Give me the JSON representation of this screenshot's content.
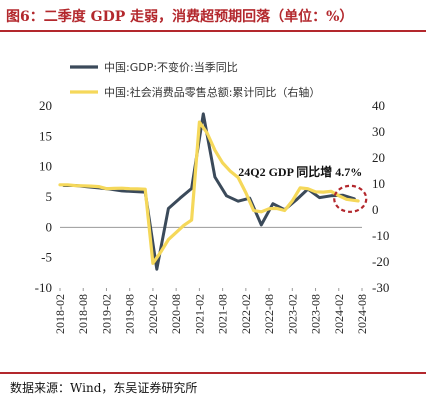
{
  "header": {
    "title": "图6：二季度 GDP 走弱，消费超预期回落（单位：%）"
  },
  "source": {
    "text": "数据来源：Wind，东吴证券研究所"
  },
  "chart_data": {
    "type": "line",
    "x": [
      "2018-02",
      "2018-05",
      "2018-08",
      "2018-11",
      "2019-02",
      "2019-05",
      "2019-08",
      "2019-11",
      "2020-02",
      "2020-05",
      "2020-08",
      "2020-11",
      "2021-02",
      "2021-05",
      "2021-08",
      "2021-11",
      "2022-02",
      "2022-05",
      "2022-08",
      "2022-11",
      "2023-02",
      "2023-05",
      "2023-08",
      "2023-11",
      "2024-02",
      "2024-05",
      "2024-08"
    ],
    "xticks": [
      "2018-02",
      "2018-08",
      "2019-02",
      "2019-08",
      "2020-02",
      "2020-08",
      "2021-02",
      "2021-08",
      "2022-02",
      "2022-08",
      "2023-02",
      "2023-08",
      "2024-02",
      "2024-08"
    ],
    "series": [
      {
        "name": "中国:GDP:不变价:当季同比",
        "axis": "left",
        "color": "#3b4a5a",
        "points": [
          [
            "2018-03",
            6.9
          ],
          [
            "2018-06",
            6.9
          ],
          [
            "2018-09",
            6.7
          ],
          [
            "2018-12",
            6.5
          ],
          [
            "2019-03",
            6.3
          ],
          [
            "2019-06",
            6.0
          ],
          [
            "2019-09",
            5.9
          ],
          [
            "2019-12",
            5.8
          ],
          [
            "2020-03",
            -6.9
          ],
          [
            "2020-06",
            3.1
          ],
          [
            "2020-09",
            4.8
          ],
          [
            "2020-12",
            6.4
          ],
          [
            "2021-03",
            18.7
          ],
          [
            "2021-06",
            8.3
          ],
          [
            "2021-09",
            5.2
          ],
          [
            "2021-12",
            4.3
          ],
          [
            "2022-03",
            4.8
          ],
          [
            "2022-06",
            0.4
          ],
          [
            "2022-09",
            3.9
          ],
          [
            "2022-12",
            2.9
          ],
          [
            "2023-03",
            4.5
          ],
          [
            "2023-06",
            6.3
          ],
          [
            "2023-09",
            4.9
          ],
          [
            "2023-12",
            5.2
          ],
          [
            "2024-03",
            5.3
          ],
          [
            "2024-06",
            4.7
          ]
        ]
      },
      {
        "name": "中国:社会消费品零售总额:累计同比（右轴）",
        "axis": "right",
        "color": "#f5d85a",
        "points": [
          [
            "2018-02",
            9.7
          ],
          [
            "2018-04",
            9.7
          ],
          [
            "2018-06",
            9.4
          ],
          [
            "2018-08",
            9.3
          ],
          [
            "2018-10",
            9.2
          ],
          [
            "2018-12",
            9.0
          ],
          [
            "2019-02",
            8.2
          ],
          [
            "2019-04",
            8.3
          ],
          [
            "2019-06",
            8.4
          ],
          [
            "2019-08",
            8.2
          ],
          [
            "2019-10",
            8.1
          ],
          [
            "2019-12",
            8.0
          ],
          [
            "2020-02",
            -20.5
          ],
          [
            "2020-04",
            -16.2
          ],
          [
            "2020-06",
            -11.4
          ],
          [
            "2020-08",
            -8.6
          ],
          [
            "2020-10",
            -5.9
          ],
          [
            "2020-12",
            -3.9
          ],
          [
            "2021-02",
            33.8
          ],
          [
            "2021-04",
            29.6
          ],
          [
            "2021-06",
            23.0
          ],
          [
            "2021-08",
            18.1
          ],
          [
            "2021-10",
            14.9
          ],
          [
            "2021-12",
            12.5
          ],
          [
            "2022-02",
            6.7
          ],
          [
            "2022-04",
            -0.2
          ],
          [
            "2022-06",
            -0.7
          ],
          [
            "2022-08",
            0.5
          ],
          [
            "2022-10",
            0.6
          ],
          [
            "2022-12",
            -0.2
          ],
          [
            "2023-02",
            3.5
          ],
          [
            "2023-04",
            8.5
          ],
          [
            "2023-06",
            8.2
          ],
          [
            "2023-08",
            7.0
          ],
          [
            "2023-10",
            6.9
          ],
          [
            "2023-12",
            7.2
          ],
          [
            "2024-02",
            5.5
          ],
          [
            "2024-04",
            4.1
          ],
          [
            "2024-06",
            3.7
          ],
          [
            "2024-07",
            3.5
          ]
        ]
      }
    ],
    "left_axis": {
      "ylim": [
        -10,
        20
      ],
      "ticks": [
        -10,
        -5,
        0,
        5,
        10,
        15,
        20
      ]
    },
    "right_axis": {
      "ylim": [
        -30,
        40
      ],
      "ticks": [
        -30,
        -20,
        -10,
        0,
        10,
        20,
        30,
        40
      ]
    },
    "annotation": {
      "text": "24Q2 GDP 同比增 4.7%",
      "at": [
        "2024-06",
        4.7
      ]
    },
    "grid": false,
    "legend": "top-left"
  }
}
